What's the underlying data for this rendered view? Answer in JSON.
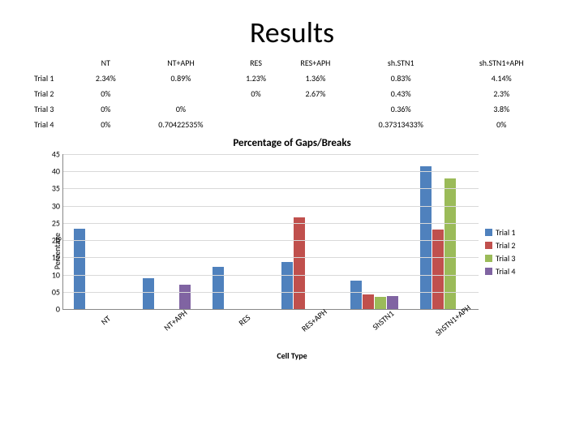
{
  "title": "Results",
  "table": {
    "columns": [
      "",
      "NT",
      "NT+APH",
      "RES",
      "RES+APH",
      "sh.STN1",
      "sh.STN1+APH"
    ],
    "rows": [
      [
        "Trial 1",
        "2.34%",
        "0.89%",
        "1.23%",
        "1.36%",
        "0.83%",
        "4.14%"
      ],
      [
        "Trial 2",
        "0%",
        "",
        "0%",
        "2.67%",
        "0.43%",
        "2.3%"
      ],
      [
        "Trial 3",
        "0%",
        "0%",
        "",
        "",
        "0.36%",
        "3.8%"
      ],
      [
        "Trial 4",
        "0%",
        "0.70422535%",
        "",
        "",
        "0.37313433%",
        "0%"
      ]
    ]
  },
  "chart": {
    "title": "Percentage of Gaps/Breaks",
    "type": "bar",
    "xlabel": "Cell Type",
    "ylabel": "Percentage",
    "ymax": 4.5,
    "ytick_step": 0.5,
    "background_color": "#ffffff",
    "grid_color": "#d9d9d9",
    "categories": [
      "NT",
      "NT+APH",
      "RES",
      "RES+APH",
      "ShSTN1",
      "ShSTN1+APH"
    ],
    "series": [
      {
        "label": "Trial 1",
        "color": "#4f81bd",
        "values": [
          2.34,
          0.89,
          1.23,
          1.36,
          0.83,
          4.14
        ]
      },
      {
        "label": "Trial 2",
        "color": "#c0504d",
        "values": [
          0,
          null,
          0,
          2.67,
          0.43,
          2.3
        ]
      },
      {
        "label": "Trial 3",
        "color": "#9bbb59",
        "values": [
          0,
          0,
          null,
          null,
          0.36,
          3.8
        ]
      },
      {
        "label": "Trial 4",
        "color": "#8064a2",
        "values": [
          0,
          0.704,
          null,
          null,
          0.373,
          0
        ]
      }
    ]
  }
}
